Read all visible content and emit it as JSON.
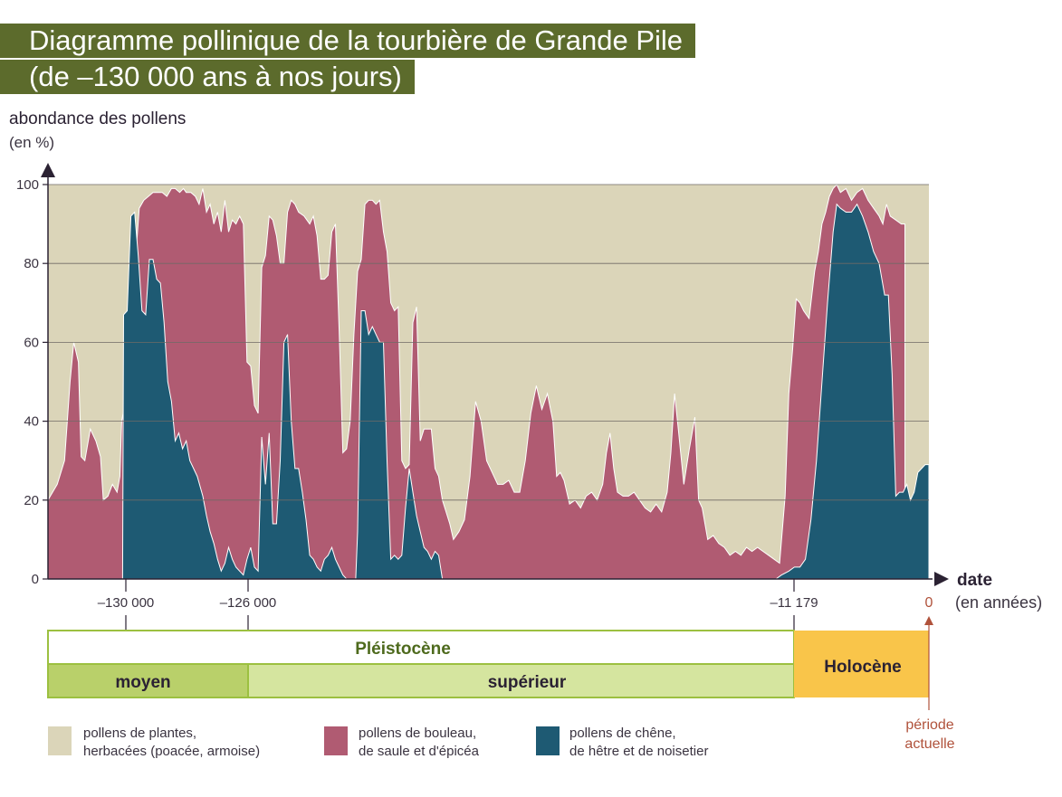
{
  "header": {
    "title_line1": "Diagramme pollinique de la tourbière de Grande Pile",
    "title_line2": "(de –130 000 ans à nos jours)"
  },
  "chart_data": {
    "type": "area",
    "stacked": true,
    "ylabel": "abondance des pollens",
    "ylabel_unit": "(en %)",
    "xlabel": "date",
    "xlabel_unit": "(en années)",
    "ylim": [
      0,
      100
    ],
    "yticks": [
      0,
      20,
      40,
      60,
      80,
      100
    ],
    "grid": true,
    "x_tick_labels": [
      "–130 000",
      "–126 000",
      "–11 179",
      "0"
    ],
    "present_marker": "période actuelle",
    "colors": {
      "herbaceous": "#dbd5b9",
      "birch": "#b05b72",
      "oak": "#1e5a73",
      "grid": "#6f6a66",
      "accent": "#b0523b",
      "title_bg": "#5c6b2c"
    },
    "x_positions_relative": [
      0,
      0.25,
      0.5,
      0.75,
      1
    ],
    "series_note": "",
    "series": [
      {
        "name": "pollens de plantes, herbacées (poacée, armoise)",
        "key": "herbaceous"
      },
      {
        "name": "pollens de bouleau, de saule et d'épicéa",
        "key": "birch",
        "points": [
          [
            0,
            20
          ],
          [
            10,
            24
          ],
          [
            18,
            30
          ],
          [
            24,
            50
          ],
          [
            28,
            60
          ],
          [
            33,
            55
          ],
          [
            36,
            31
          ],
          [
            40,
            30
          ],
          [
            46,
            38
          ],
          [
            52,
            35
          ],
          [
            57,
            31
          ],
          [
            60,
            20
          ],
          [
            65,
            21
          ],
          [
            70,
            24
          ],
          [
            75,
            22
          ],
          [
            78,
            26
          ],
          [
            80,
            40
          ],
          [
            84,
            45
          ],
          [
            88,
            46
          ],
          [
            94,
            78
          ],
          [
            99,
            94
          ],
          [
            104,
            96
          ],
          [
            109,
            97
          ],
          [
            114,
            98
          ],
          [
            119,
            98
          ],
          [
            124,
            98
          ],
          [
            129,
            97
          ],
          [
            134,
            99
          ],
          [
            138,
            99
          ],
          [
            143,
            98
          ],
          [
            147,
            99
          ],
          [
            150,
            98
          ],
          [
            155,
            98
          ],
          [
            160,
            97
          ],
          [
            164,
            95
          ],
          [
            168,
            99
          ],
          [
            172,
            93
          ],
          [
            176,
            95
          ],
          [
            180,
            90
          ],
          [
            184,
            93
          ],
          [
            188,
            88
          ],
          [
            192,
            96
          ],
          [
            196,
            88
          ],
          [
            200,
            91
          ],
          [
            204,
            90
          ],
          [
            208,
            92
          ],
          [
            212,
            90
          ],
          [
            216,
            55
          ],
          [
            220,
            54
          ],
          [
            224,
            44
          ],
          [
            228,
            42
          ],
          [
            232,
            79
          ],
          [
            236,
            82
          ],
          [
            240,
            92
          ],
          [
            244,
            91
          ],
          [
            248,
            87
          ],
          [
            252,
            80
          ],
          [
            256,
            80
          ],
          [
            260,
            93
          ],
          [
            264,
            96
          ],
          [
            268,
            95
          ],
          [
            272,
            93
          ],
          [
            278,
            92
          ],
          [
            284,
            90
          ],
          [
            288,
            92
          ],
          [
            292,
            87
          ],
          [
            296,
            76
          ],
          [
            300,
            76
          ],
          [
            304,
            77
          ],
          [
            308,
            88
          ],
          [
            312,
            90
          ],
          [
            316,
            63
          ],
          [
            320,
            32
          ],
          [
            324,
            33
          ],
          [
            328,
            40
          ],
          [
            332,
            62
          ],
          [
            336,
            78
          ],
          [
            340,
            81
          ],
          [
            344,
            95
          ],
          [
            348,
            96
          ],
          [
            352,
            96
          ],
          [
            356,
            95
          ],
          [
            360,
            96
          ],
          [
            364,
            88
          ],
          [
            368,
            83
          ],
          [
            372,
            70
          ],
          [
            376,
            68
          ],
          [
            380,
            69
          ],
          [
            384,
            30
          ],
          [
            388,
            28
          ],
          [
            392,
            29
          ],
          [
            396,
            65
          ],
          [
            400,
            69
          ],
          [
            404,
            35
          ],
          [
            408,
            38
          ],
          [
            412,
            38
          ],
          [
            416,
            38
          ],
          [
            420,
            28
          ],
          [
            424,
            26
          ],
          [
            428,
            20
          ],
          [
            432,
            17
          ],
          [
            436,
            14
          ],
          [
            440,
            10
          ],
          [
            446,
            12
          ],
          [
            452,
            15
          ],
          [
            458,
            26
          ],
          [
            464,
            45
          ],
          [
            470,
            40
          ],
          [
            476,
            30
          ],
          [
            482,
            27
          ],
          [
            488,
            24
          ],
          [
            494,
            24
          ],
          [
            500,
            25
          ],
          [
            506,
            22
          ],
          [
            512,
            22
          ],
          [
            518,
            30
          ],
          [
            524,
            42
          ],
          [
            530,
            49
          ],
          [
            536,
            43
          ],
          [
            542,
            47
          ],
          [
            548,
            40
          ],
          [
            552,
            26
          ],
          [
            556,
            27
          ],
          [
            560,
            25
          ],
          [
            566,
            19
          ],
          [
            572,
            20
          ],
          [
            578,
            18
          ],
          [
            584,
            21
          ],
          [
            590,
            22
          ],
          [
            596,
            20
          ],
          [
            602,
            24
          ],
          [
            606,
            32
          ],
          [
            610,
            37
          ],
          [
            614,
            28
          ],
          [
            618,
            22
          ],
          [
            624,
            21
          ],
          [
            630,
            21
          ],
          [
            636,
            22
          ],
          [
            642,
            20
          ],
          [
            648,
            18
          ],
          [
            654,
            17
          ],
          [
            660,
            19
          ],
          [
            666,
            17
          ],
          [
            672,
            22
          ],
          [
            676,
            32
          ],
          [
            680,
            47
          ],
          [
            684,
            38
          ],
          [
            690,
            24
          ],
          [
            696,
            33
          ],
          [
            702,
            41
          ],
          [
            706,
            20
          ],
          [
            710,
            18
          ],
          [
            716,
            10
          ],
          [
            722,
            11
          ],
          [
            728,
            9
          ],
          [
            734,
            8
          ],
          [
            740,
            6
          ],
          [
            746,
            7
          ],
          [
            752,
            6
          ],
          [
            758,
            8
          ],
          [
            764,
            7
          ],
          [
            770,
            8
          ],
          [
            776,
            7
          ],
          [
            782,
            6
          ],
          [
            788,
            5
          ],
          [
            794,
            4
          ],
          [
            800,
            21
          ],
          [
            804,
            47
          ],
          [
            808,
            58
          ],
          [
            812,
            71
          ],
          [
            816,
            70
          ],
          [
            820,
            68
          ],
          [
            826,
            66
          ],
          [
            832,
            78
          ],
          [
            836,
            83
          ],
          [
            840,
            90
          ],
          [
            844,
            93
          ],
          [
            848,
            97
          ],
          [
            852,
            99
          ],
          [
            856,
            100
          ],
          [
            860,
            98
          ],
          [
            866,
            99
          ],
          [
            872,
            96
          ],
          [
            878,
            98
          ],
          [
            884,
            99
          ],
          [
            890,
            96
          ],
          [
            896,
            94
          ],
          [
            902,
            92
          ],
          [
            906,
            90
          ],
          [
            910,
            95
          ],
          [
            914,
            92
          ],
          [
            920,
            91
          ],
          [
            926,
            90
          ],
          [
            930,
            90
          ]
        ]
      },
      {
        "name": "pollens de chêne, de hêtre et de noisetier",
        "key": "oak",
        "points": [
          [
            0,
            0
          ],
          [
            81,
            0
          ],
          [
            82,
            67
          ],
          [
            86,
            68
          ],
          [
            90,
            92
          ],
          [
            94,
            93
          ],
          [
            98,
            82
          ],
          [
            102,
            68
          ],
          [
            106,
            67
          ],
          [
            110,
            81
          ],
          [
            114,
            81
          ],
          [
            118,
            76
          ],
          [
            122,
            75
          ],
          [
            126,
            65
          ],
          [
            130,
            50
          ],
          [
            134,
            45
          ],
          [
            138,
            35
          ],
          [
            142,
            37
          ],
          [
            146,
            33
          ],
          [
            150,
            35
          ],
          [
            154,
            30
          ],
          [
            158,
            28
          ],
          [
            162,
            26
          ],
          [
            168,
            21
          ],
          [
            172,
            16
          ],
          [
            176,
            12
          ],
          [
            180,
            9
          ],
          [
            184,
            5
          ],
          [
            188,
            2
          ],
          [
            192,
            4
          ],
          [
            196,
            8
          ],
          [
            200,
            5
          ],
          [
            204,
            3
          ],
          [
            208,
            2
          ],
          [
            212,
            1
          ],
          [
            216,
            5
          ],
          [
            220,
            8
          ],
          [
            224,
            3
          ],
          [
            228,
            2
          ],
          [
            232,
            36
          ],
          [
            236,
            24
          ],
          [
            240,
            37
          ],
          [
            244,
            14
          ],
          [
            248,
            14
          ],
          [
            252,
            30
          ],
          [
            256,
            60
          ],
          [
            260,
            62
          ],
          [
            264,
            40
          ],
          [
            268,
            28
          ],
          [
            272,
            28
          ],
          [
            276,
            22
          ],
          [
            280,
            15
          ],
          [
            284,
            6
          ],
          [
            288,
            5
          ],
          [
            292,
            3
          ],
          [
            296,
            2
          ],
          [
            300,
            5
          ],
          [
            304,
            6
          ],
          [
            308,
            8
          ],
          [
            312,
            5
          ],
          [
            316,
            3
          ],
          [
            320,
            1
          ],
          [
            324,
            0
          ],
          [
            330,
            0
          ],
          [
            334,
            0
          ],
          [
            336,
            12
          ],
          [
            340,
            68
          ],
          [
            344,
            68
          ],
          [
            348,
            62
          ],
          [
            352,
            64
          ],
          [
            356,
            62
          ],
          [
            360,
            60
          ],
          [
            364,
            60
          ],
          [
            368,
            30
          ],
          [
            372,
            5
          ],
          [
            376,
            6
          ],
          [
            380,
            5
          ],
          [
            384,
            6
          ],
          [
            388,
            18
          ],
          [
            392,
            28
          ],
          [
            396,
            22
          ],
          [
            400,
            16
          ],
          [
            404,
            12
          ],
          [
            408,
            8
          ],
          [
            412,
            7
          ],
          [
            416,
            5
          ],
          [
            420,
            7
          ],
          [
            424,
            6
          ],
          [
            428,
            0
          ],
          [
            790,
            0
          ],
          [
            796,
            1
          ],
          [
            804,
            2
          ],
          [
            810,
            3
          ],
          [
            816,
            3
          ],
          [
            822,
            5
          ],
          [
            828,
            15
          ],
          [
            834,
            30
          ],
          [
            840,
            50
          ],
          [
            846,
            70
          ],
          [
            852,
            88
          ],
          [
            856,
            95
          ],
          [
            860,
            94
          ],
          [
            866,
            93
          ],
          [
            872,
            93
          ],
          [
            878,
            95
          ],
          [
            884,
            92
          ],
          [
            890,
            88
          ],
          [
            896,
            83
          ],
          [
            902,
            80
          ],
          [
            908,
            72
          ],
          [
            912,
            72
          ],
          [
            916,
            52
          ],
          [
            920,
            21
          ],
          [
            924,
            22
          ],
          [
            928,
            22
          ],
          [
            932,
            24
          ],
          [
            936,
            20
          ],
          [
            940,
            22
          ],
          [
            944,
            27
          ],
          [
            948,
            28
          ],
          [
            952,
            29
          ],
          [
            956,
            29
          ]
        ]
      }
    ]
  },
  "timeline": {
    "era": "Pléistocène",
    "sub_middle": "moyen",
    "sub_upper": "supérieur",
    "holocene": "Holocène"
  },
  "legend": {
    "herb_line1": "pollens de plantes,",
    "herb_line2": "herbacées (poacée, armoise)",
    "birch_line1": "pollens de bouleau,",
    "birch_line2": "de saule et d'épicéa",
    "oak_line1": "pollens de chêne,",
    "oak_line2": "de hêtre et de noisetier",
    "present_line1": "période",
    "present_line2": "actuelle"
  }
}
